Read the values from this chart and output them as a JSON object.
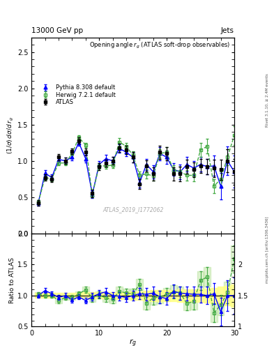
{
  "title_top": "13000 GeV pp",
  "title_right": "Jets",
  "plot_title": "Opening angle $r_g$ (ATLAS soft-drop observables)",
  "ylabel_main": "(1/σ) dσ/d r_{g}",
  "ylabel_ratio": "Ratio to ATLAS",
  "xlabel": "r_{g}",
  "watermark": "ATLAS_2019_I1772062",
  "right_label_top": "Rivet 3.1.10, ≥ 2.4M events",
  "right_label_bot": "mcplots.cern.ch [arXiv:1306.3436]",
  "atlas_x": [
    1,
    2,
    3,
    4,
    5,
    6,
    7,
    8,
    9,
    10,
    11,
    12,
    13,
    14,
    15,
    16,
    17,
    18,
    19,
    20,
    21,
    22,
    23,
    24,
    25,
    26,
    27,
    28,
    29,
    30
  ],
  "atlas_y": [
    0.42,
    0.77,
    0.75,
    1.05,
    1.0,
    1.13,
    1.28,
    1.12,
    0.55,
    0.92,
    0.97,
    1.0,
    1.18,
    1.15,
    1.05,
    0.68,
    0.93,
    0.82,
    1.12,
    1.1,
    0.82,
    0.82,
    0.92,
    0.88,
    0.93,
    0.92,
    0.9,
    0.88,
    1.0,
    0.85
  ],
  "atlas_yerr": [
    0.04,
    0.04,
    0.04,
    0.04,
    0.04,
    0.04,
    0.04,
    0.05,
    0.05,
    0.05,
    0.05,
    0.05,
    0.06,
    0.06,
    0.07,
    0.07,
    0.08,
    0.09,
    0.09,
    0.09,
    0.09,
    0.1,
    0.1,
    0.1,
    0.1,
    0.11,
    0.12,
    0.14,
    0.16,
    0.18
  ],
  "herwig_x": [
    1,
    2,
    3,
    4,
    5,
    6,
    7,
    8,
    9,
    10,
    11,
    12,
    13,
    14,
    15,
    16,
    17,
    18,
    19,
    20,
    21,
    22,
    23,
    24,
    25,
    26,
    27,
    28,
    29,
    30
  ],
  "herwig_y": [
    0.43,
    0.77,
    0.75,
    0.97,
    0.97,
    1.1,
    1.32,
    1.22,
    0.53,
    0.93,
    0.93,
    0.94,
    1.26,
    1.2,
    1.08,
    0.8,
    0.82,
    0.79,
    1.1,
    1.12,
    0.87,
    0.85,
    0.8,
    0.8,
    1.15,
    1.2,
    0.65,
    0.75,
    1.05,
    1.35
  ],
  "herwig_yerr": [
    0.03,
    0.03,
    0.03,
    0.03,
    0.03,
    0.03,
    0.03,
    0.03,
    0.03,
    0.04,
    0.04,
    0.04,
    0.05,
    0.05,
    0.05,
    0.05,
    0.06,
    0.06,
    0.06,
    0.07,
    0.07,
    0.07,
    0.07,
    0.08,
    0.1,
    0.1,
    0.1,
    0.1,
    0.11,
    0.13
  ],
  "pythia_x": [
    1,
    2,
    3,
    4,
    5,
    6,
    7,
    8,
    9,
    10,
    11,
    12,
    13,
    14,
    15,
    16,
    17,
    18,
    19,
    20,
    21,
    22,
    23,
    24,
    25,
    26,
    27,
    28,
    29,
    30
  ],
  "pythia_y": [
    0.42,
    0.83,
    0.77,
    1.02,
    1.0,
    1.05,
    1.25,
    1.03,
    0.54,
    0.95,
    1.03,
    1.0,
    1.17,
    1.12,
    1.05,
    0.7,
    0.95,
    0.85,
    1.1,
    1.05,
    0.88,
    0.85,
    0.95,
    0.9,
    0.95,
    0.92,
    0.93,
    0.65,
    1.0,
    0.85
  ],
  "pythia_yerr": [
    0.04,
    0.04,
    0.04,
    0.04,
    0.04,
    0.04,
    0.04,
    0.05,
    0.05,
    0.05,
    0.05,
    0.05,
    0.06,
    0.06,
    0.07,
    0.07,
    0.08,
    0.09,
    0.09,
    0.09,
    0.09,
    0.1,
    0.1,
    0.1,
    0.1,
    0.11,
    0.14,
    0.18,
    0.2,
    0.22
  ],
  "ylim_main": [
    0.0,
    2.7
  ],
  "ylim_ratio": [
    0.5,
    2.0
  ],
  "xlim": [
    0,
    30
  ],
  "atlas_color": "black",
  "herwig_color": "#44aa44",
  "pythia_color": "blue",
  "atlas_band_color": "#ffff88",
  "herwig_band_color": "#aadd88",
  "herwig_ratio_y": [
    1.02,
    1.0,
    1.0,
    0.92,
    0.97,
    0.97,
    1.03,
    1.09,
    0.96,
    1.01,
    0.96,
    0.94,
    1.07,
    1.04,
    1.03,
    1.18,
    0.88,
    0.96,
    0.98,
    1.02,
    1.06,
    1.04,
    0.87,
    0.91,
    1.24,
    1.3,
    0.72,
    0.85,
    1.05,
    1.59
  ],
  "herwig_ratio_yerr": [
    0.04,
    0.04,
    0.04,
    0.04,
    0.04,
    0.04,
    0.04,
    0.05,
    0.06,
    0.06,
    0.06,
    0.06,
    0.07,
    0.07,
    0.08,
    0.09,
    0.1,
    0.11,
    0.1,
    0.1,
    0.11,
    0.11,
    0.11,
    0.13,
    0.15,
    0.16,
    0.15,
    0.16,
    0.17,
    0.22
  ],
  "pythia_ratio_y": [
    1.0,
    1.08,
    1.03,
    0.97,
    1.0,
    0.93,
    0.98,
    0.92,
    0.98,
    1.03,
    1.06,
    1.0,
    0.99,
    0.97,
    1.0,
    1.03,
    1.02,
    1.04,
    0.98,
    0.95,
    1.07,
    1.04,
    1.03,
    1.02,
    1.02,
    1.0,
    1.03,
    0.74,
    1.0,
    1.0
  ],
  "pythia_ratio_yerr": [
    0.04,
    0.04,
    0.04,
    0.04,
    0.04,
    0.04,
    0.04,
    0.05,
    0.06,
    0.06,
    0.06,
    0.06,
    0.07,
    0.07,
    0.08,
    0.09,
    0.1,
    0.11,
    0.1,
    0.1,
    0.11,
    0.11,
    0.11,
    0.13,
    0.13,
    0.14,
    0.17,
    0.22,
    0.25,
    0.29
  ],
  "atlas_ratio_band_err": [
    0.04,
    0.04,
    0.04,
    0.04,
    0.04,
    0.04,
    0.04,
    0.05,
    0.05,
    0.05,
    0.05,
    0.05,
    0.06,
    0.06,
    0.07,
    0.07,
    0.08,
    0.09,
    0.09,
    0.09,
    0.09,
    0.1,
    0.1,
    0.1,
    0.1,
    0.11,
    0.12,
    0.14,
    0.16,
    0.18
  ]
}
